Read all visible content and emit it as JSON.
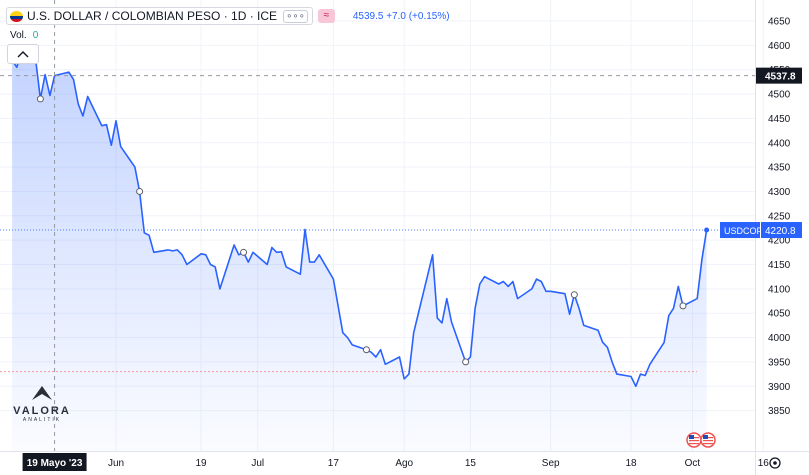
{
  "header": {
    "symbol_title": "U.S. DOLLAR / COLOMBIAN PESO · 1D · ICE",
    "badge": "≈",
    "quote": "4539.5 +7.0 (+0.15%)"
  },
  "volume": {
    "label": "Vol.",
    "value": "0"
  },
  "logo": {
    "name": "VALORA",
    "sub": "ANALITIK"
  },
  "colors": {
    "line": "#2962ff",
    "fill": "#2962ff",
    "axis_text": "#131722",
    "grid": "#f0f3fa",
    "highlight_label": "#2962ff",
    "crosshair_label": "#131722"
  },
  "chart_data": {
    "type": "area",
    "title": "U.S. DOLLAR / COLOMBIAN PESO · 1D · ICE",
    "xlabel": "",
    "ylabel": "",
    "ylim": [
      3825,
      4675
    ],
    "yticks": [
      3850,
      3900,
      3950,
      4000,
      4050,
      4100,
      4150,
      4200,
      4250,
      4300,
      4350,
      4400,
      4450,
      4500,
      4550,
      4600,
      4650
    ],
    "x_tick_labels": [
      "Jun",
      "19",
      "Jul",
      "17",
      "Ago",
      "15",
      "Sep",
      "18",
      "Oct",
      "16"
    ],
    "x_tick_dates": [
      "2023-06-01",
      "2023-06-19",
      "2023-07-01",
      "2023-07-17",
      "2023-08-01",
      "2023-08-15",
      "2023-09-01",
      "2023-09-18",
      "2023-10-01",
      "2023-10-16"
    ],
    "crosshair": {
      "date": "2023-05-19",
      "label": "19 Mayo '23",
      "value": 4537.8,
      "value_label": "4537.8"
    },
    "last": {
      "symbol": "USDCOP",
      "value": 4220.8,
      "value_label": "4220.8"
    },
    "reference_line": {
      "value": 3930
    },
    "grid": true,
    "series": [
      {
        "dates": [
          "2023-05-10",
          "2023-05-11",
          "2023-05-12",
          "2023-05-15",
          "2023-05-16",
          "2023-05-17",
          "2023-05-18",
          "2023-05-19",
          "2023-05-22",
          "2023-05-23",
          "2023-05-24",
          "2023-05-25",
          "2023-05-26",
          "2023-05-29",
          "2023-05-30",
          "2023-05-31",
          "2023-06-01",
          "2023-06-02",
          "2023-06-05",
          "2023-06-06",
          "2023-06-07",
          "2023-06-08",
          "2023-06-09",
          "2023-06-12",
          "2023-06-13",
          "2023-06-14",
          "2023-06-15",
          "2023-06-16",
          "2023-06-19",
          "2023-06-20",
          "2023-06-21",
          "2023-06-22",
          "2023-06-23",
          "2023-06-26",
          "2023-06-27",
          "2023-06-28",
          "2023-06-29",
          "2023-06-30",
          "2023-07-03",
          "2023-07-04",
          "2023-07-05",
          "2023-07-06",
          "2023-07-07",
          "2023-07-10",
          "2023-07-11",
          "2023-07-12",
          "2023-07-13",
          "2023-07-14",
          "2023-07-17",
          "2023-07-18",
          "2023-07-19",
          "2023-07-20",
          "2023-07-21",
          "2023-07-24",
          "2023-07-25",
          "2023-07-26",
          "2023-07-27",
          "2023-07-28",
          "2023-07-31",
          "2023-08-01",
          "2023-08-02",
          "2023-08-03",
          "2023-08-04",
          "2023-08-07",
          "2023-08-08",
          "2023-08-09",
          "2023-08-10",
          "2023-08-11",
          "2023-08-14",
          "2023-08-15",
          "2023-08-16",
          "2023-08-17",
          "2023-08-18",
          "2023-08-21",
          "2023-08-22",
          "2023-08-23",
          "2023-08-24",
          "2023-08-25",
          "2023-08-28",
          "2023-08-29",
          "2023-08-30",
          "2023-08-31",
          "2023-09-01",
          "2023-09-04",
          "2023-09-05",
          "2023-09-06",
          "2023-09-07",
          "2023-09-08",
          "2023-09-11",
          "2023-09-12",
          "2023-09-13",
          "2023-09-14",
          "2023-09-15",
          "2023-09-18",
          "2023-09-19",
          "2023-09-20",
          "2023-09-21",
          "2023-09-22",
          "2023-09-25",
          "2023-09-26",
          "2023-09-27",
          "2023-09-28",
          "2023-09-29",
          "2023-10-02",
          "2023-10-03",
          "2023-10-04"
        ],
        "values": [
          4570,
          4555,
          4590,
          4570,
          4490,
          4540,
          4497,
          4537.8,
          4545,
          4530,
          4480,
          4455,
          4495,
          4435,
          4437,
          4395,
          4445,
          4392,
          4350,
          4300,
          4215,
          4210,
          4175,
          4180,
          4178,
          4180,
          4170,
          4150,
          4172,
          4170,
          4150,
          4145,
          4100,
          4190,
          4170,
          4175,
          4155,
          4175,
          4150,
          4185,
          4175,
          4176,
          4145,
          4130,
          4222,
          4155,
          4155,
          4170,
          4120,
          4065,
          4010,
          4000,
          3985,
          3975,
          3970,
          3960,
          3975,
          3945,
          3960,
          3915,
          3925,
          4010,
          4050,
          4170,
          4040,
          4030,
          4080,
          4032,
          3950,
          3960,
          4060,
          4110,
          4125,
          4110,
          4115,
          4105,
          4115,
          4080,
          4100,
          4120,
          4115,
          4095,
          4095,
          4090,
          4048,
          4088,
          4060,
          4025,
          4015,
          3990,
          3980,
          3950,
          3925,
          3920,
          3900,
          3925,
          3922,
          3945,
          3990,
          4045,
          4060,
          4105,
          4065,
          4080,
          4160,
          4220.8
        ]
      }
    ],
    "event_markers": [
      "2023-05-16",
      "2023-06-06",
      "2023-06-28",
      "2023-07-24",
      "2023-08-14",
      "2023-09-06",
      "2023-09-29"
    ]
  }
}
